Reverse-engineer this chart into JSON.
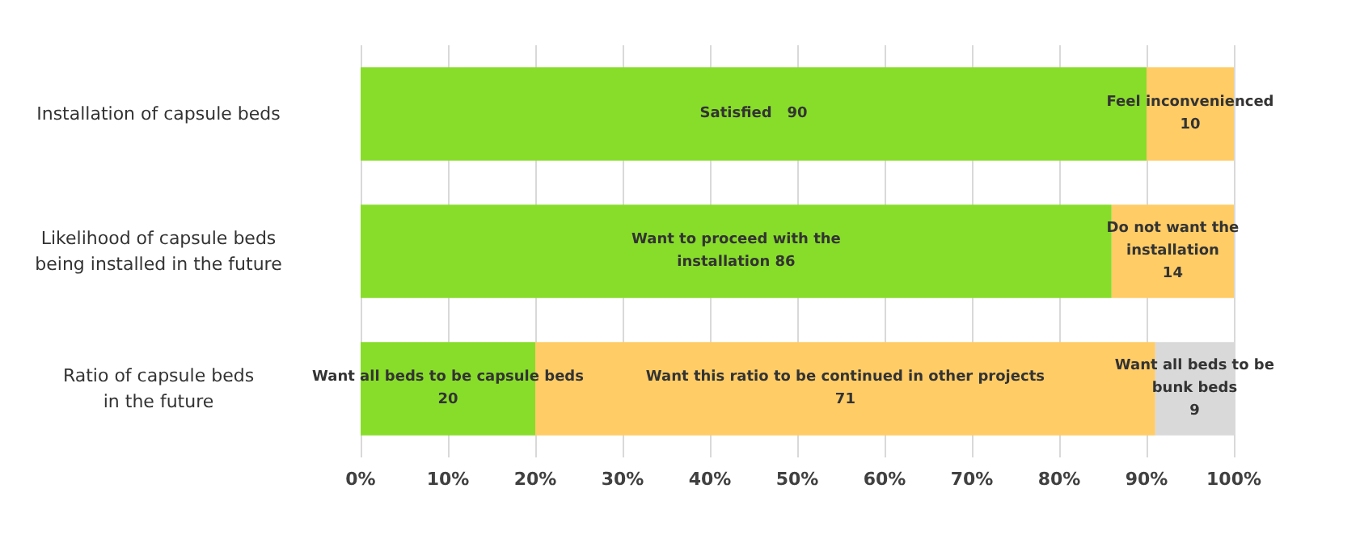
{
  "chart_data": {
    "type": "bar",
    "orientation": "horizontal",
    "stacked": true,
    "categories": [
      "Installation of capsule beds",
      "Likelihood of capsule beds\nbeing installed in the future",
      "Ratio of capsule beds\nin the future"
    ],
    "series": [
      {
        "color": "#88dd2a",
        "values": [
          90,
          86,
          20
        ],
        "value_labels": [
          "Satisfied   90",
          "Want to proceed with the\ninstallation 86",
          "Want all beds to be capsule beds\n20"
        ]
      },
      {
        "color": "#ffcc66",
        "values": [
          10,
          14,
          71
        ],
        "value_labels": [
          "Feel inconvenienced\n10",
          "Do not want the\ninstallation\n14",
          "Want this ratio to be continued in other projects\n71"
        ]
      },
      {
        "color": "#d9d9d9",
        "values": [
          null,
          null,
          9
        ],
        "value_labels": [
          null,
          null,
          "Want all beds to be\nbunk beds\n9"
        ]
      }
    ],
    "xlim": [
      0,
      100
    ],
    "xticks": [
      {
        "value": 0,
        "label": "0%"
      },
      {
        "value": 10,
        "label": "10%"
      },
      {
        "value": 20,
        "label": "20%"
      },
      {
        "value": 30,
        "label": "30%"
      },
      {
        "value": 40,
        "label": "40%"
      },
      {
        "value": 50,
        "label": "50%"
      },
      {
        "value": 60,
        "label": "60%"
      },
      {
        "value": 70,
        "label": "70%"
      },
      {
        "value": 80,
        "label": "80%"
      },
      {
        "value": 90,
        "label": "90%"
      },
      {
        "value": 100,
        "label": "100%"
      }
    ],
    "grid": "x"
  }
}
